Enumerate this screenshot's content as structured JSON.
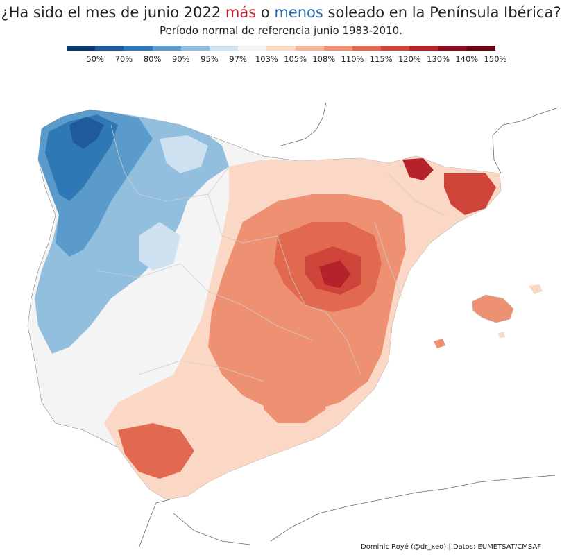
{
  "title": {
    "prefix": "¿Ha sido el mes de junio 2022 ",
    "more": "más",
    "middle": " o ",
    "less": "menos",
    "suffix": " soleado en la Península Ibérica?"
  },
  "subtitle": "Período normal de referencia junio 1983-2010.",
  "legend": {
    "colors": [
      "#0b3a73",
      "#1f5a9b",
      "#2f78b6",
      "#5b9bcc",
      "#93bfdf",
      "#cde1f0",
      "#f4f4f4",
      "#fbd7c5",
      "#f7b79a",
      "#ee9173",
      "#e0694f",
      "#cf4438",
      "#b5222b",
      "#8f0f22",
      "#6b0516"
    ],
    "labels": [
      "50%",
      "70%",
      "80%",
      "90%",
      "95%",
      "97%",
      "103%",
      "105%",
      "108%",
      "110%",
      "115%",
      "120%",
      "130%",
      "140%",
      "150%"
    ]
  },
  "credit": "Dominic Royé (@dr_xeo) | Datos: EUMETSAT/CMSAF"
}
